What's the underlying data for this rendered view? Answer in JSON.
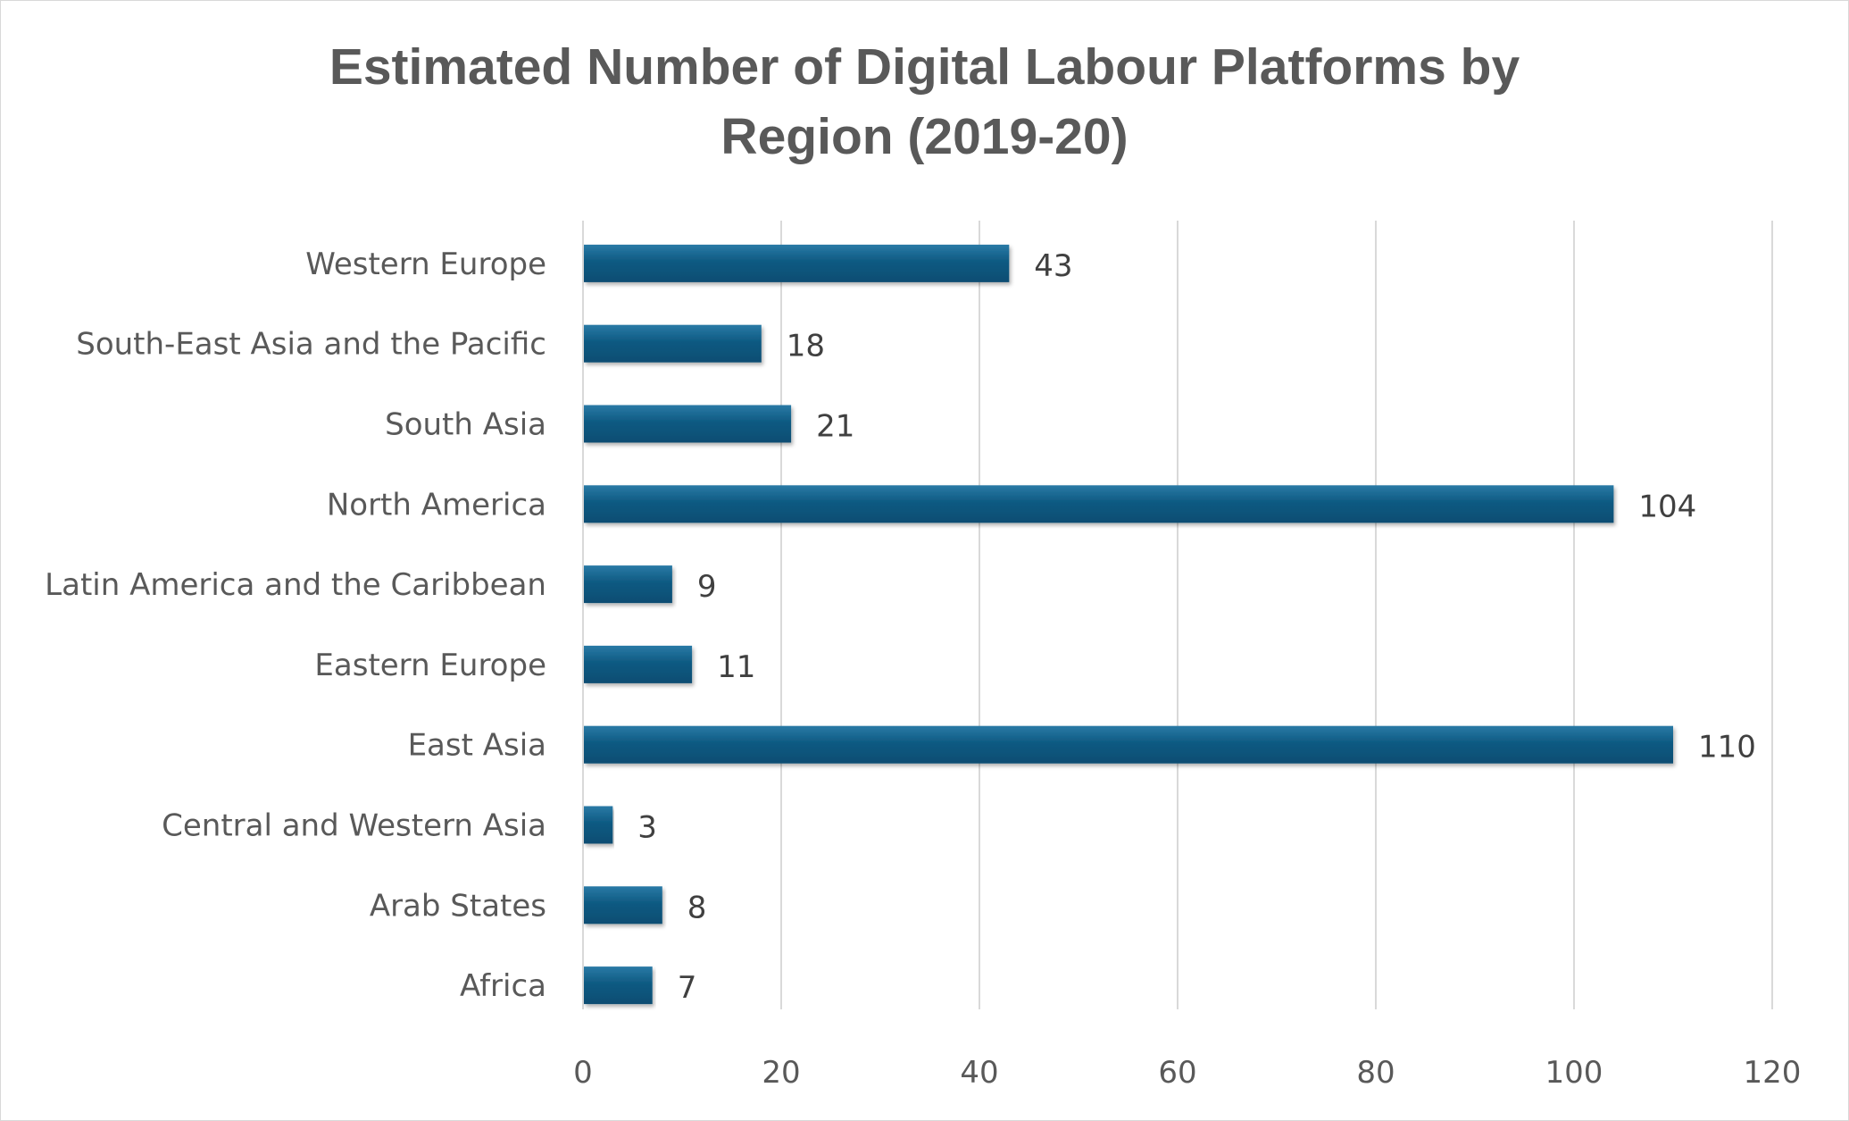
{
  "chart_data": {
    "type": "bar",
    "orientation": "horizontal",
    "title_line1": "Estimated Number of Digital Labour Platforms by",
    "title_line2": "Region (2019-20)",
    "categories": [
      "Western Europe",
      "South-East Asia and the Pacific",
      "South Asia",
      "North America",
      "Latin America and the Caribbean",
      "Eastern Europe",
      "East Asia",
      "Central and Western Asia",
      "Arab States",
      "Africa"
    ],
    "values": [
      43,
      18,
      21,
      104,
      9,
      11,
      110,
      3,
      8,
      7
    ],
    "xlim": [
      0,
      120
    ],
    "xticks": [
      "0",
      "20",
      "40",
      "60",
      "80",
      "100",
      "120"
    ],
    "grid": "vertical",
    "data_labels": true,
    "bar_color": "#0e5a82",
    "bar_color_light": "#2a7aa6"
  }
}
